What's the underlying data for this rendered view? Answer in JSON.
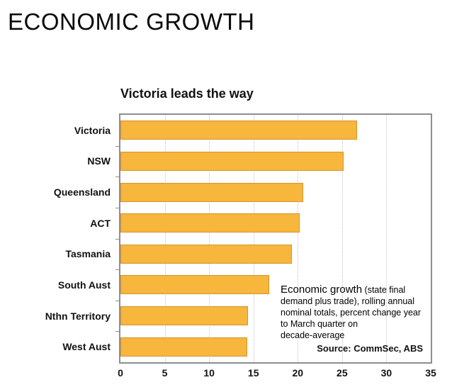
{
  "page": {
    "title": "ECONOMIC GROWTH"
  },
  "chart": {
    "title": "Victoria leads the way",
    "annotation": {
      "line1_lead": "Economic growth",
      "line1_rest": " (state final",
      "line2": "demand plus trade), rolling annual",
      "line3": "nominal totals, percent change year",
      "line4": "to March quarter on",
      "line5": "decade-average"
    },
    "source": "Source: CommSec, ABS"
  },
  "chart_data": {
    "type": "bar",
    "orientation": "horizontal",
    "title": "Victoria leads the way",
    "categories": [
      "Victoria",
      "NSW",
      "Queensland",
      "ACT",
      "Tasmania",
      "South Aust",
      "Nthn Territory",
      "West Aust"
    ],
    "values": [
      26.7,
      25.2,
      20.6,
      20.2,
      19.3,
      16.8,
      14.4,
      14.3
    ],
    "xlabel": "",
    "ylabel": "",
    "xlim": [
      0,
      35
    ],
    "xticks": [
      0,
      5,
      10,
      15,
      20,
      25,
      30,
      35
    ],
    "grid": true,
    "legend": "none",
    "bar_color": "#f7b63c",
    "bar_border_color": "#d8942c",
    "frame_color": "#8e8e8e"
  }
}
